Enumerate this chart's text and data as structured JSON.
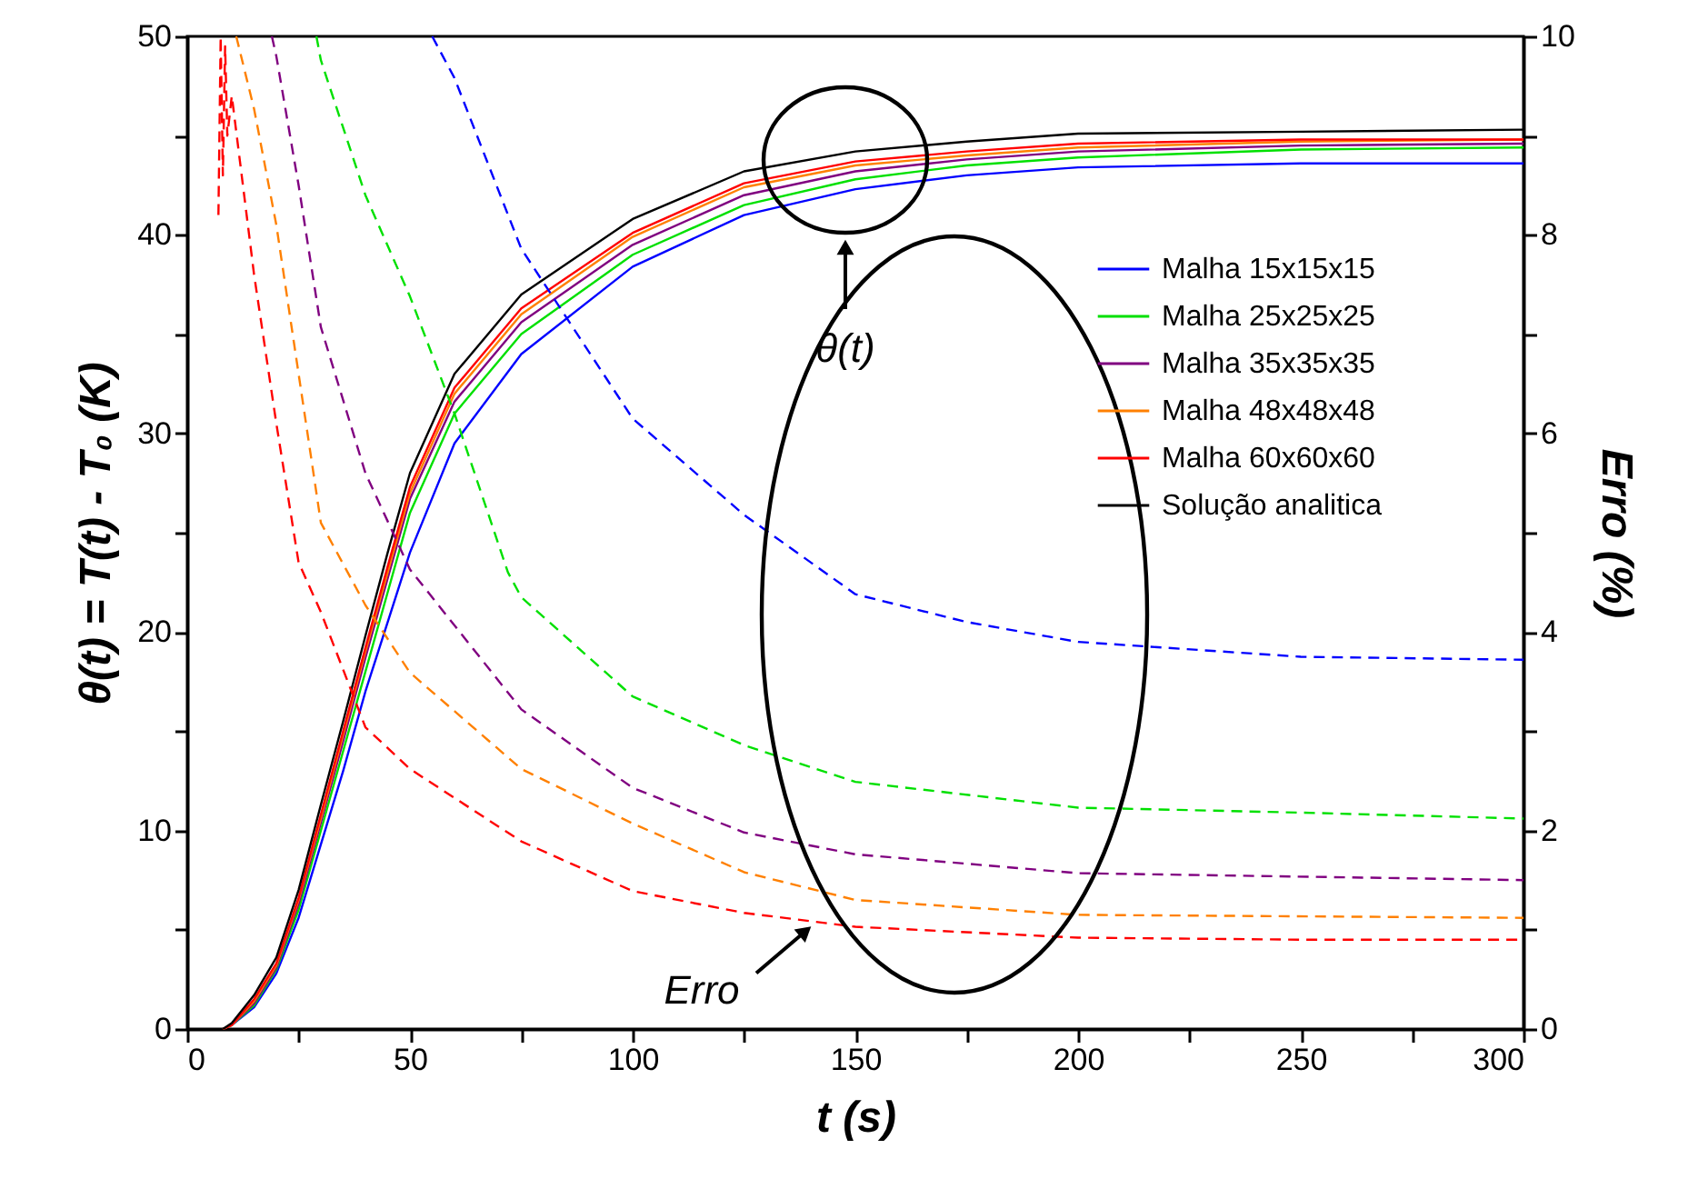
{
  "chart_data": {
    "type": "line",
    "xlabel": "t  (s)",
    "ylabel": "θ(t) = T(t) - T₀  (K)",
    "y2label": "Erro  (%)",
    "xlim": [
      0,
      300
    ],
    "xticks": [
      0,
      {
        "value": 25,
        "label": null
      },
      50,
      {
        "value": 75,
        "label": null
      },
      100,
      {
        "value": 125,
        "label": null
      },
      150,
      {
        "value": 175,
        "label": null
      },
      200,
      {
        "value": 225,
        "label": null
      },
      250,
      {
        "value": 275,
        "label": null
      },
      300
    ],
    "ylim": [
      0,
      50
    ],
    "yticks": [
      0,
      {
        "value": 5,
        "label": null
      },
      10,
      {
        "value": 15,
        "label": null
      },
      20,
      {
        "value": 25,
        "label": null
      },
      30,
      {
        "value": 35,
        "label": null
      },
      40,
      {
        "value": 45,
        "label": null
      },
      50
    ],
    "y2lim": [
      0,
      10
    ],
    "y2ticks": [
      0,
      {
        "value": 1,
        "label": null
      },
      2,
      {
        "value": 3,
        "label": null
      },
      4,
      {
        "value": 5,
        "label": null
      },
      6,
      {
        "value": 7,
        "label": null
      },
      8,
      {
        "value": 9,
        "label": null
      },
      10
    ],
    "grid": false,
    "legend": "right",
    "marker": "none",
    "annotations": [
      "θ(t)",
      {
        "text": "Erro",
        "x": 140,
        "y": 5.2
      }
    ],
    "series": [
      {
        "name": "Malha 15x15x15",
        "color": "#0000ff",
        "line_style": "solid",
        "x": [
          8,
          10,
          15,
          20,
          25,
          30,
          35,
          40,
          45,
          50,
          60,
          75,
          100,
          125,
          150,
          175,
          200,
          250,
          300
        ],
        "values": [
          0,
          0.2,
          1.1,
          2.8,
          5.6,
          9.3,
          13,
          17,
          20.5,
          24,
          29.5,
          34,
          38.4,
          41,
          42.3,
          43,
          43.4,
          43.6,
          43.6
        ]
      },
      {
        "name": "Malha 25x25x25",
        "color": "#00e000",
        "line_style": "solid",
        "x": [
          8,
          10,
          15,
          20,
          25,
          30,
          35,
          40,
          45,
          50,
          60,
          75,
          100,
          125,
          150,
          175,
          200,
          250,
          300
        ],
        "values": [
          0,
          0.2,
          1.2,
          3,
          6,
          10,
          14,
          18,
          22,
          26,
          31,
          35,
          39,
          41.5,
          42.8,
          43.5,
          43.9,
          44.3,
          44.4
        ]
      },
      {
        "name": "Malha 35x35x35",
        "color": "#800080",
        "line_style": "solid",
        "x": [
          8,
          10,
          15,
          20,
          25,
          30,
          35,
          40,
          45,
          50,
          60,
          75,
          100,
          125,
          150,
          175,
          200,
          250,
          300
        ],
        "values": [
          0,
          0.2,
          1.3,
          3.1,
          6.3,
          10.4,
          14.5,
          18.7,
          22.7,
          26.7,
          31.6,
          35.6,
          39.5,
          42,
          43.2,
          43.8,
          44.2,
          44.5,
          44.6
        ]
      },
      {
        "name": "Malha 48x48x48",
        "color": "#ff8000",
        "line_style": "solid",
        "x": [
          8,
          10,
          15,
          20,
          25,
          30,
          35,
          40,
          45,
          50,
          60,
          75,
          100,
          125,
          150,
          175,
          200,
          250,
          300
        ],
        "values": [
          0,
          0.2,
          1.4,
          3.2,
          6.5,
          10.6,
          14.8,
          19,
          23,
          27,
          32,
          36,
          39.9,
          42.4,
          43.5,
          44,
          44.4,
          44.7,
          44.8
        ]
      },
      {
        "name": "Malha 60x60x60",
        "color": "#ff0000",
        "line_style": "solid",
        "x": [
          8,
          10,
          15,
          20,
          25,
          30,
          35,
          40,
          45,
          50,
          60,
          75,
          100,
          125,
          150,
          175,
          200,
          250,
          300
        ],
        "values": [
          0,
          0.2,
          1.5,
          3.3,
          6.6,
          10.8,
          15,
          19.2,
          23.3,
          27.3,
          32.3,
          36.3,
          40.1,
          42.6,
          43.7,
          44.2,
          44.6,
          44.8,
          44.8
        ]
      },
      {
        "name": "Solução analitica",
        "color": "#000000",
        "line_style": "solid",
        "x": [
          8,
          10,
          15,
          20,
          25,
          30,
          35,
          40,
          45,
          50,
          60,
          75,
          100,
          125,
          150,
          175,
          200,
          250,
          300
        ],
        "values": [
          0,
          0.3,
          1.7,
          3.6,
          7,
          11.3,
          15.5,
          19.8,
          24,
          28,
          33,
          37,
          40.8,
          43.2,
          44.2,
          44.7,
          45.1,
          45.2,
          45.3
        ]
      },
      {
        "color": "#0000ff",
        "axis": "y2",
        "line_style": "dashed",
        "x": [
          55,
          60,
          75,
          100,
          125,
          150,
          175,
          200,
          250,
          300
        ],
        "values": [
          10,
          9.58,
          7.86,
          6.15,
          5.18,
          4.38,
          4.1,
          3.9,
          3.75,
          3.72
        ]
      },
      {
        "color": "#00e000",
        "axis": "y2",
        "line_style": "dashed",
        "x": [
          29,
          30,
          40,
          50,
          60,
          72,
          75,
          100,
          125,
          150,
          200,
          250,
          300
        ],
        "values": [
          10,
          9.76,
          8.4,
          7.38,
          6.2,
          4.6,
          4.35,
          3.35,
          2.86,
          2.49,
          2.23,
          2.18,
          2.12
        ]
      },
      {
        "color": "#800080",
        "axis": "y2",
        "line_style": "dashed",
        "x": [
          19,
          20,
          25,
          30,
          40,
          50,
          75,
          100,
          125,
          150,
          200,
          300
        ],
        "values": [
          10,
          9.8,
          8.5,
          7.07,
          5.6,
          4.63,
          3.22,
          2.43,
          1.98,
          1.76,
          1.57,
          1.5
        ]
      },
      {
        "color": "#ff8000",
        "axis": "y2",
        "line_style": "dashed",
        "x": [
          11,
          15,
          20,
          25,
          30,
          40,
          50,
          75,
          100,
          125,
          150,
          200,
          300
        ],
        "values": [
          10,
          9.27,
          8.1,
          6.6,
          5.1,
          4.27,
          3.59,
          2.62,
          2.07,
          1.58,
          1.3,
          1.15,
          1.12
        ]
      },
      {
        "color": "#ff0000",
        "axis": "y2",
        "line_style": "dashed",
        "x": [
          7,
          7.5,
          8,
          8.5,
          9,
          10,
          15,
          20,
          25,
          30,
          40,
          50,
          75,
          100,
          125,
          150,
          200,
          250,
          300
        ],
        "values": [
          8.2,
          10,
          8.6,
          9.9,
          9,
          9.4,
          7.6,
          6.1,
          4.7,
          4.2,
          3.04,
          2.62,
          1.89,
          1.39,
          1.17,
          1.03,
          0.92,
          0.9,
          0.9
        ]
      }
    ]
  }
}
